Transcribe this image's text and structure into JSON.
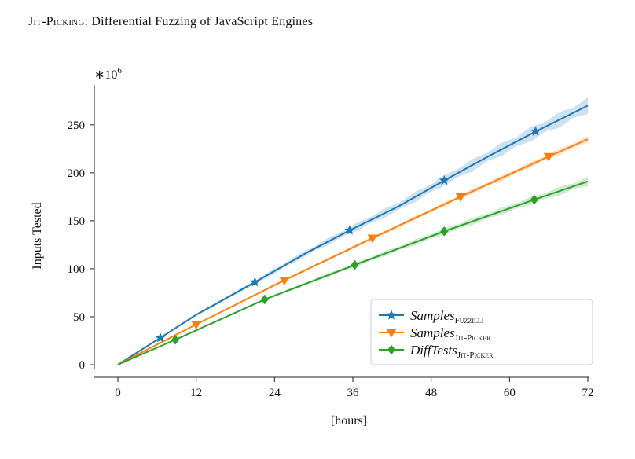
{
  "header": {
    "title_smallcaps": "Jit-Picking",
    "title_rest": ": Differential Fuzzing of JavaScript Engines"
  },
  "chart_data": {
    "type": "line",
    "xlabel": "[hours]",
    "ylabel": "Inputs Tested",
    "multiplier_label": "∗10",
    "multiplier_exp": "6",
    "xlim": [
      0,
      72
    ],
    "ylim": [
      0,
      290
    ],
    "xticks": [
      0,
      12,
      24,
      36,
      48,
      60,
      72
    ],
    "yticks": [
      0,
      50,
      100,
      150,
      200,
      250
    ],
    "legend_position": "lower-right",
    "grid": false,
    "series": [
      {
        "name": "Samples",
        "subscript": "Fuzzilli",
        "color": "#1f77b4",
        "marker": "star",
        "x": [
          0,
          6.5,
          12,
          21,
          29,
          35.5,
          43,
          50,
          57,
          64,
          72
        ],
        "y": [
          0,
          28,
          52,
          86,
          117,
          140,
          165,
          192,
          218,
          243,
          270
        ],
        "band": 7,
        "marker_x": [
          6.5,
          21,
          35.5,
          50,
          64
        ]
      },
      {
        "name": "Samples",
        "subscript": "Jit-Picker",
        "color": "#ff7f0e",
        "marker": "triangle-down",
        "x": [
          0,
          12,
          25.5,
          39,
          52.5,
          66,
          72
        ],
        "y": [
          0,
          42,
          88,
          132,
          175,
          217,
          235
        ],
        "band": 3,
        "marker_x": [
          12,
          25.5,
          39,
          52.5,
          66
        ]
      },
      {
        "name": "DiffTests",
        "subscript": "Jit-Picker",
        "color": "#2ca02c",
        "marker": "diamond",
        "x": [
          0,
          8.8,
          22.5,
          36.3,
          50,
          63.8,
          72
        ],
        "y": [
          0,
          26,
          68,
          104,
          139,
          172,
          191
        ],
        "band": 4,
        "marker_x": [
          8.8,
          22.5,
          36.3,
          50,
          63.8
        ]
      }
    ]
  }
}
